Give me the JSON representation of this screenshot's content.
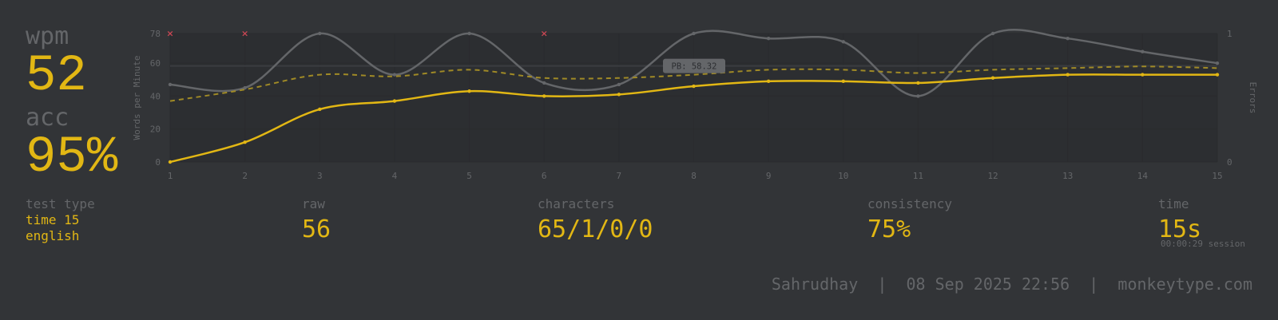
{
  "stats": {
    "wpm_label": "wpm",
    "wpm_value": "52",
    "acc_label": "acc",
    "acc_value": "95%"
  },
  "details": {
    "test_type_label": "test type",
    "test_type_mode": "time 15",
    "test_type_language": "english",
    "raw_label": "raw",
    "raw_value": "56",
    "characters_label": "characters",
    "characters_value": "65/1/0/0",
    "consistency_label": "consistency",
    "consistency_value": "75%",
    "time_label": "time",
    "time_value": "15s",
    "session_text": "00:00:29 session"
  },
  "footer": {
    "user": "Sahrudhay",
    "date": "08 Sep 2025 22:56",
    "site": "monkeytype.com",
    "separator": "|"
  },
  "colors": {
    "background": "#323437",
    "accent": "#e2b714",
    "sub": "#646669",
    "error": "#ca4754"
  },
  "chart_data": {
    "type": "line",
    "ylabel": "Words per Minute",
    "y2label": "Errors",
    "x": [
      1,
      2,
      3,
      4,
      5,
      6,
      7,
      8,
      9,
      10,
      11,
      12,
      13,
      14,
      15
    ],
    "ylim": [
      0,
      78
    ],
    "yticks": [
      0,
      20,
      40,
      60,
      78
    ],
    "y2lim": [
      0,
      1
    ],
    "y2ticks": [
      0,
      1
    ],
    "pb_label": "PB: 58.32",
    "pb_value": 58.32,
    "series": [
      {
        "role": "wpm",
        "values": [
          0,
          12,
          32,
          37,
          43,
          40,
          41,
          46,
          49,
          49,
          48,
          51,
          53,
          53,
          53
        ]
      },
      {
        "role": "burst",
        "values": [
          47,
          45,
          78,
          53,
          78,
          48,
          47,
          78,
          75,
          73,
          40,
          78,
          75,
          67,
          60
        ]
      },
      {
        "role": "raw",
        "values": [
          37,
          44,
          53,
          52,
          56,
          51,
          51,
          53,
          56,
          56,
          54,
          56,
          57,
          58,
          57
        ]
      }
    ],
    "errors_x": [
      1,
      2,
      6
    ]
  }
}
